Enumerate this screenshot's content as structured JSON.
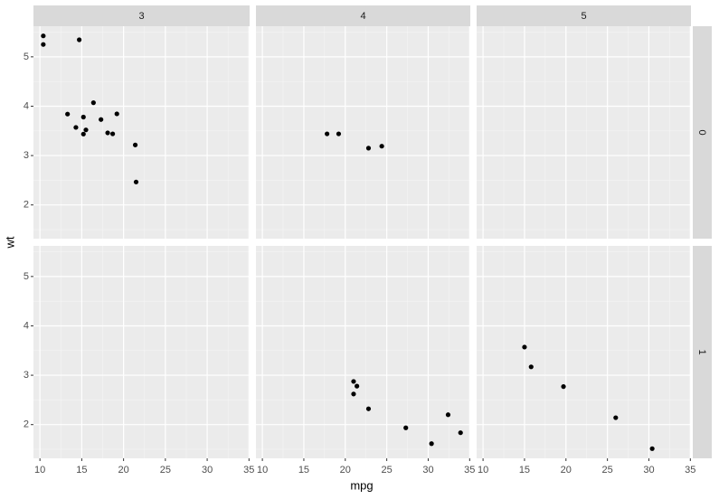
{
  "chart_data": {
    "type": "scatter",
    "x_label": "mpg",
    "y_label": "wt",
    "facet_cols": [
      "3",
      "4",
      "5"
    ],
    "facet_rows": [
      "0",
      "1"
    ],
    "panels": [
      [
        {
          "x": [
            21.4,
            18.7,
            18.1,
            14.3,
            16.4,
            17.3,
            15.2,
            10.4,
            10.4,
            14.7,
            21.5,
            15.5,
            15.2,
            13.3,
            19.2
          ],
          "y": [
            3.215,
            3.44,
            3.46,
            3.57,
            4.07,
            3.73,
            3.78,
            5.25,
            5.424,
            5.345,
            2.465,
            3.52,
            3.435,
            3.84,
            3.845
          ]
        },
        {
          "x": [
            24.4,
            22.8,
            19.2,
            17.8
          ],
          "y": [
            3.19,
            3.15,
            3.44,
            3.44
          ]
        },
        {
          "x": [],
          "y": []
        }
      ],
      [
        {
          "x": [],
          "y": []
        },
        {
          "x": [
            21.0,
            21.0,
            22.8,
            32.4,
            30.4,
            33.9,
            27.3,
            21.4
          ],
          "y": [
            2.62,
            2.875,
            2.32,
            2.2,
            1.615,
            1.835,
            1.935,
            2.78
          ]
        },
        {
          "x": [
            26.0,
            30.4,
            15.8,
            19.7,
            15.0
          ],
          "y": [
            2.14,
            1.513,
            3.17,
            2.77,
            3.57
          ]
        }
      ]
    ],
    "color": "#000000",
    "xlim": [
      9.225,
      35.075
    ],
    "ylim": [
      1.317,
      5.62
    ],
    "xticks": [
      10,
      15,
      20,
      25,
      30,
      35
    ],
    "yticks": [
      2,
      3,
      4,
      5
    ],
    "grid": true
  }
}
